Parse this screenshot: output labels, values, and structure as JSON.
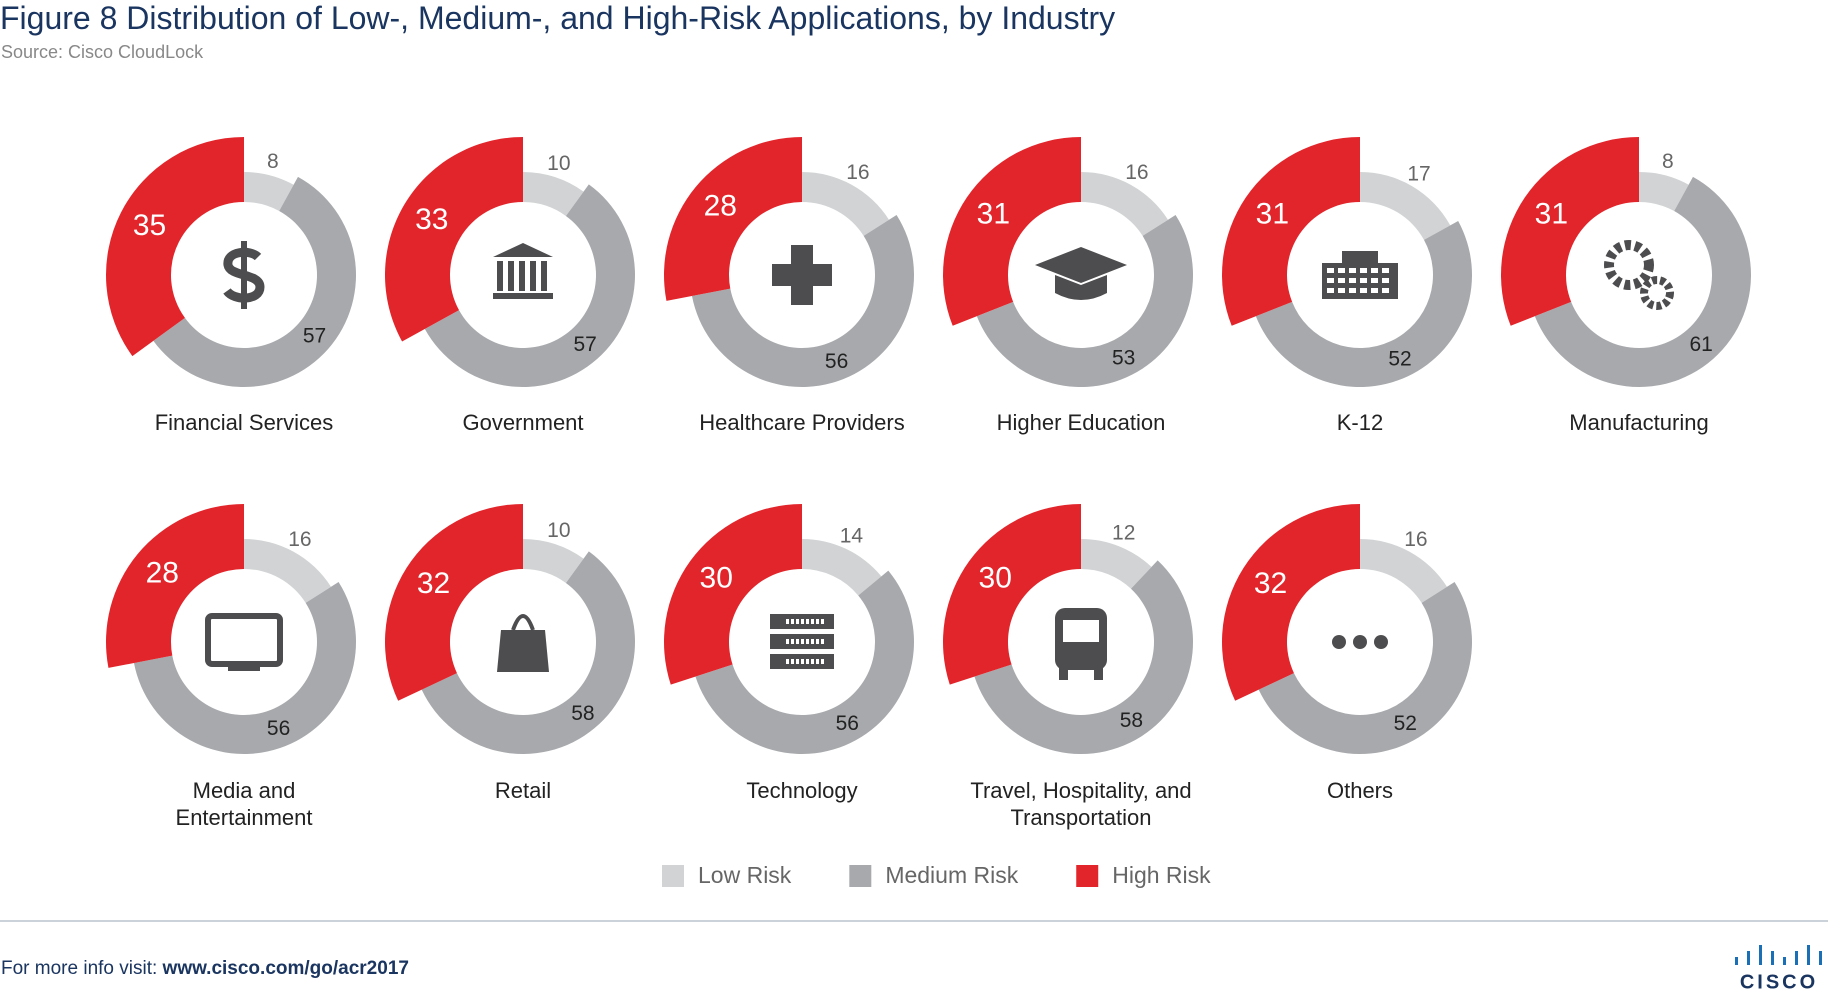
{
  "chart_data": {
    "type": "donut",
    "title": "Figure 8  Distribution of Low-, Medium-, and High-Risk Applications, by Industry",
    "subtitle": "Source: Cisco CloudLock",
    "categories": [
      "Financial Services",
      "Government",
      "Healthcare Providers",
      "Higher Education",
      "K-12",
      "Manufacturing",
      "Media and Entertainment",
      "Retail",
      "Technology",
      "Travel, Hospitality, and Transportation",
      "Others"
    ],
    "series": [
      {
        "name": "Low Risk",
        "color": "#d1d3d4",
        "values": [
          8,
          10,
          16,
          16,
          17,
          8,
          16,
          10,
          14,
          12,
          16
        ]
      },
      {
        "name": "Medium Risk",
        "color": "#a7a9ac",
        "values": [
          57,
          57,
          56,
          53,
          52,
          61,
          56,
          58,
          56,
          58,
          52
        ]
      },
      {
        "name": "High Risk",
        "color": "#e2252b",
        "values": [
          35,
          33,
          28,
          31,
          31,
          31,
          28,
          32,
          30,
          30,
          32
        ]
      }
    ],
    "legend": "bottom"
  },
  "footer": {
    "text": "For more info visit:",
    "link": "www.cisco.com/go/acr2017",
    "logo": "CISCO"
  }
}
